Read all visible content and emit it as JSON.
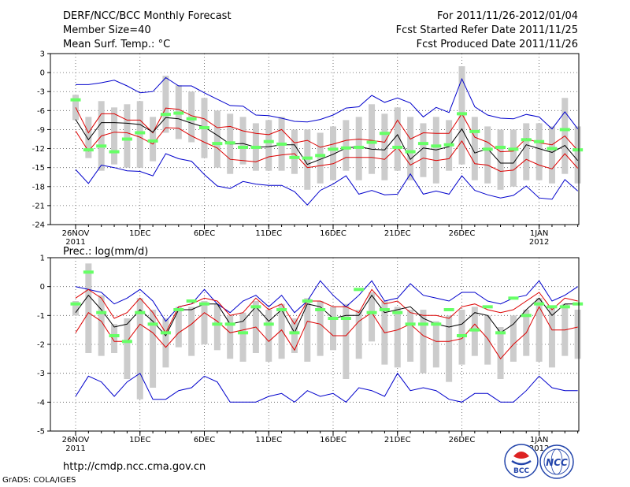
{
  "header": {
    "title": "DERF/NCC/BCC Monthly Forecast",
    "member_size": "Member Size=40",
    "forecast_period": "For 2011/11/26-2012/01/04",
    "fcst_started": "Fcst Started Refer Date 2011/11/25",
    "fcst_produced": "Fcst Produced Date 2011/11/26"
  },
  "footer": {
    "url": "http://cmdp.ncc.cma.gov.cn",
    "grads_credit": "GrADS: COLA/IGES",
    "logo_bcc": "BCC",
    "logo_ncc": "NCC"
  },
  "colors": {
    "upper_envelope": "#0000cc",
    "lower_envelope": "#0000cc",
    "upper_quartile": "#dd0000",
    "lower_quartile": "#dd0000",
    "mean": "#000000",
    "bar": "#cccccc",
    "marker": "#66ff66"
  },
  "chart_data": [
    {
      "type": "line",
      "title": "Mean Surf. Temp.: °C",
      "xlabel": "",
      "ylabel": "",
      "ylim": [
        -24,
        3
      ],
      "yticks": [
        3,
        0,
        -3,
        -6,
        -9,
        -12,
        -15,
        -18,
        -21,
        -24
      ],
      "xtick_labels": [
        {
          "day": 0,
          "label": "26NOV",
          "sub": "2011"
        },
        {
          "day": 5,
          "label": "1DEC",
          "sub": ""
        },
        {
          "day": 10,
          "label": "6DEC",
          "sub": ""
        },
        {
          "day": 15,
          "label": "11DEC",
          "sub": ""
        },
        {
          "day": 20,
          "label": "16DEC",
          "sub": ""
        },
        {
          "day": 25,
          "label": "21DEC",
          "sub": ""
        },
        {
          "day": 30,
          "label": "26DEC",
          "sub": ""
        },
        {
          "day": 36,
          "label": "1JAN",
          "sub": "2012"
        }
      ],
      "x_days": [
        0,
        1,
        2,
        3,
        4,
        5,
        6,
        7,
        8,
        9,
        10,
        11,
        12,
        13,
        14,
        15,
        16,
        17,
        18,
        19,
        20,
        21,
        22,
        23,
        24,
        25,
        26,
        27,
        28,
        29,
        30,
        31,
        32,
        33,
        34,
        35,
        36,
        37,
        38,
        39
      ],
      "series": [
        {
          "name": "max",
          "values": [
            -1.9,
            -1.9,
            -1.6,
            -1.2,
            -2.1,
            -3.2,
            -3.0,
            -0.8,
            -2.1,
            -2.1,
            -3.2,
            -4.2,
            -5.2,
            -5.3,
            -6.7,
            -6.8,
            -7.2,
            -7.7,
            -7.8,
            -7.4,
            -6.7,
            -5.6,
            -5.4,
            -3.6,
            -4.7,
            -4.0,
            -4.8,
            -7.0,
            -5.5,
            -6.3,
            -1.0,
            -5.4,
            -6.7,
            -7.2,
            -7.3,
            -6.6,
            -7.0,
            -8.9,
            -6.2,
            -8.9
          ]
        },
        {
          "name": "upper",
          "values": [
            -5.5,
            -9.5,
            -6.5,
            -6.5,
            -7.5,
            -7.5,
            -9.5,
            -5.6,
            -5.8,
            -6.8,
            -7.3,
            -8.7,
            -8.5,
            -9.2,
            -9.6,
            -9.8,
            -9.0,
            -11.1,
            -10.7,
            -11.8,
            -11.3,
            -10.7,
            -10.5,
            -10.7,
            -11.0,
            -7.5,
            -10.5,
            -9.5,
            -9.6,
            -9.6,
            -6.5,
            -10.2,
            -11.0,
            -12.5,
            -12.4,
            -10.4,
            -11.1,
            -11.4,
            -10.0,
            -12.3
          ]
        },
        {
          "name": "mean",
          "values": [
            -7.4,
            -10.6,
            -7.9,
            -7.9,
            -8.0,
            -8.2,
            -9.4,
            -7.1,
            -7.3,
            -8.0,
            -8.6,
            -9.9,
            -11.3,
            -11.2,
            -11.8,
            -11.7,
            -11.4,
            -11.4,
            -14.5,
            -13.7,
            -12.9,
            -11.9,
            -11.7,
            -12.1,
            -12.2,
            -9.8,
            -13.7,
            -11.9,
            -12.2,
            -11.7,
            -8.9,
            -12.7,
            -12.0,
            -14.3,
            -14.3,
            -11.4,
            -12.0,
            -12.6,
            -11.5,
            -13.9
          ]
        },
        {
          "name": "lower",
          "values": [
            -9.2,
            -12.4,
            -10.0,
            -9.4,
            -9.5,
            -10.2,
            -11.3,
            -8.7,
            -8.8,
            -10.0,
            -11.0,
            -11.9,
            -13.7,
            -13.9,
            -14.1,
            -13.3,
            -13.0,
            -12.8,
            -15.0,
            -14.7,
            -14.4,
            -13.4,
            -13.4,
            -13.4,
            -13.7,
            -11.8,
            -14.6,
            -13.5,
            -13.9,
            -13.6,
            -10.8,
            -14.4,
            -14.6,
            -15.6,
            -15.4,
            -13.7,
            -14.6,
            -15.2,
            -12.8,
            -15.1
          ]
        },
        {
          "name": "min",
          "values": [
            -15.3,
            -17.5,
            -14.6,
            -15.0,
            -15.5,
            -15.6,
            -16.3,
            -12.8,
            -13.6,
            -14.0,
            -16.1,
            -17.9,
            -18.3,
            -17.2,
            -17.6,
            -17.8,
            -17.8,
            -18.8,
            -20.9,
            -18.6,
            -17.6,
            -16.3,
            -19.2,
            -18.6,
            -19.3,
            -19.2,
            -16.0,
            -19.2,
            -18.7,
            -19.2,
            -16.3,
            -18.6,
            -19.3,
            -19.8,
            -19.4,
            -17.9,
            -19.8,
            -20.0,
            -16.9,
            -18.7
          ]
        },
        {
          "name": "bar_top",
          "values": [
            -3.5,
            -7.0,
            -4.5,
            -5.5,
            -5.0,
            -4.5,
            -7.0,
            -0.5,
            -2.0,
            -3.0,
            -4.0,
            -6.0,
            -6.5,
            -7.0,
            -8.0,
            -7.5,
            -7.0,
            -9.0,
            -9.0,
            -9.5,
            -8.5,
            -7.5,
            -7.0,
            -5.0,
            -6.5,
            -5.5,
            -7.0,
            -8.0,
            -7.0,
            -7.5,
            1.0,
            -7.0,
            -8.5,
            -9.0,
            -9.0,
            -8.0,
            -8.0,
            -8.5,
            -4.0,
            -8.5
          ]
        },
        {
          "name": "bar_bottom",
          "values": [
            -7.5,
            -13.5,
            -15.5,
            -14.5,
            -15.0,
            -15.0,
            -14.0,
            -9.5,
            -10.5,
            -11.0,
            -13.5,
            -15.0,
            -16.0,
            -14.5,
            -15.5,
            -15.5,
            -15.5,
            -16.0,
            -18.5,
            -17.5,
            -17.0,
            -15.5,
            -17.0,
            -16.0,
            -17.0,
            -15.5,
            -17.0,
            -16.5,
            -17.5,
            -15.5,
            -14.5,
            -17.0,
            -17.5,
            -18.5,
            -18.0,
            -17.0,
            -17.0,
            -17.5,
            -16.0,
            -17.5
          ]
        },
        {
          "name": "marker",
          "values": [
            -4.3,
            -12.2,
            -11.6,
            -12.5,
            -10.5,
            -9.5,
            -10.8,
            -6.6,
            -6.4,
            -7.3,
            -8.7,
            -11.2,
            -11.1,
            -11.8,
            -11.8,
            -10.9,
            -11.3,
            -13.4,
            -13.5,
            -13.1,
            -12.1,
            -11.9,
            -11.8,
            -11.0,
            -9.6,
            -11.8,
            -12.5,
            -11.2,
            -11.6,
            -11.4,
            -6.5,
            -9.3,
            -12.1,
            -11.8,
            -12.1,
            -10.6,
            -10.9,
            -12.0,
            -9.0,
            -12.2
          ]
        }
      ]
    },
    {
      "type": "line",
      "title": "Prec.: log(mm/d)",
      "xlabel": "",
      "ylabel": "",
      "ylim": [
        -5,
        1
      ],
      "yticks": [
        1,
        0,
        -1,
        -2,
        -3,
        -4,
        -5
      ],
      "xtick_labels": [
        {
          "day": 0,
          "label": "26NOV",
          "sub": "2011"
        },
        {
          "day": 5,
          "label": "1DEC",
          "sub": ""
        },
        {
          "day": 10,
          "label": "6DEC",
          "sub": ""
        },
        {
          "day": 15,
          "label": "11DEC",
          "sub": ""
        },
        {
          "day": 20,
          "label": "16DEC",
          "sub": ""
        },
        {
          "day": 25,
          "label": "21DEC",
          "sub": ""
        },
        {
          "day": 30,
          "label": "26DEC",
          "sub": ""
        },
        {
          "day": 36,
          "label": "1JAN",
          "sub": "2012"
        }
      ],
      "x_days": [
        0,
        1,
        2,
        3,
        4,
        5,
        6,
        7,
        8,
        9,
        10,
        11,
        12,
        13,
        14,
        15,
        16,
        17,
        18,
        19,
        20,
        21,
        22,
        23,
        24,
        25,
        26,
        27,
        28,
        29,
        30,
        31,
        32,
        33,
        34,
        35,
        36,
        37,
        38,
        39
      ],
      "series": [
        {
          "name": "max",
          "values": [
            0.0,
            -0.1,
            -0.2,
            -0.6,
            -0.4,
            -0.1,
            -0.5,
            -1.2,
            -0.7,
            -0.6,
            -0.1,
            -0.6,
            -0.9,
            -0.5,
            -0.3,
            -0.7,
            -0.3,
            -0.9,
            -0.5,
            0.2,
            -0.3,
            -0.7,
            -0.3,
            0.2,
            -0.5,
            -0.4,
            0.1,
            -0.3,
            -0.4,
            -0.5,
            -0.2,
            -0.2,
            -0.5,
            -0.6,
            -0.4,
            -0.3,
            0.2,
            -0.5,
            -0.3,
            0.0
          ]
        },
        {
          "name": "upper",
          "values": [
            -0.4,
            -0.1,
            -0.4,
            -1.1,
            -0.9,
            -0.4,
            -0.9,
            -1.6,
            -0.7,
            -0.6,
            -0.4,
            -0.5,
            -1.0,
            -0.9,
            -0.4,
            -0.8,
            -0.6,
            -1.3,
            -0.5,
            -0.5,
            -0.7,
            -0.7,
            -0.9,
            -0.1,
            -0.6,
            -0.5,
            -0.9,
            -1.0,
            -1.0,
            -1.1,
            -0.7,
            -0.6,
            -0.8,
            -0.9,
            -0.8,
            -0.5,
            -0.2,
            -0.8,
            -0.4,
            -0.5
          ]
        },
        {
          "name": "mean",
          "values": [
            -0.9,
            -0.3,
            -0.8,
            -1.4,
            -1.3,
            -0.8,
            -1.2,
            -1.7,
            -0.8,
            -0.8,
            -0.6,
            -0.6,
            -1.3,
            -1.2,
            -0.7,
            -1.2,
            -0.8,
            -1.6,
            -0.6,
            -0.7,
            -1.1,
            -1.0,
            -1.0,
            -0.3,
            -0.9,
            -0.8,
            -0.7,
            -1.1,
            -1.3,
            -1.4,
            -1.3,
            -0.9,
            -1.0,
            -1.6,
            -1.3,
            -0.8,
            -0.4,
            -1.0,
            -0.6,
            -0.6
          ]
        },
        {
          "name": "lower",
          "values": [
            -1.6,
            -0.9,
            -1.2,
            -1.9,
            -1.9,
            -1.3,
            -1.6,
            -2.1,
            -1.6,
            -1.3,
            -0.9,
            -1.2,
            -1.6,
            -1.5,
            -1.4,
            -1.9,
            -1.5,
            -2.2,
            -1.2,
            -1.3,
            -1.7,
            -1.7,
            -1.2,
            -0.9,
            -1.6,
            -1.5,
            -1.3,
            -1.7,
            -1.9,
            -1.9,
            -1.8,
            -1.3,
            -1.8,
            -2.5,
            -2.0,
            -1.6,
            -0.7,
            -1.5,
            -1.5,
            -1.4
          ]
        },
        {
          "name": "min",
          "values": [
            -3.8,
            -3.1,
            -3.3,
            -3.8,
            -3.3,
            -3.0,
            -3.9,
            -3.9,
            -3.6,
            -3.5,
            -3.1,
            -3.3,
            -4.0,
            -4.0,
            -4.0,
            -3.8,
            -3.7,
            -4.0,
            -3.6,
            -3.8,
            -3.7,
            -4.0,
            -3.5,
            -3.6,
            -3.8,
            -3.0,
            -3.6,
            -3.5,
            -3.6,
            -3.9,
            -4.0,
            -3.7,
            -3.7,
            -4.0,
            -4.0,
            -3.6,
            -3.1,
            -3.5,
            -3.6,
            -3.6
          ]
        },
        {
          "name": "bar_top",
          "values": [
            -0.5,
            0.8,
            -0.3,
            -1.3,
            -1.1,
            -0.4,
            -0.8,
            -1.1,
            -0.7,
            -0.7,
            -0.5,
            -0.6,
            -1.0,
            -0.9,
            -0.5,
            -0.8,
            -0.6,
            -1.1,
            -0.4,
            -0.5,
            -0.7,
            -0.6,
            -0.8,
            -0.2,
            -0.5,
            -0.7,
            -0.8,
            -0.8,
            -1.2,
            -1.0,
            -0.8,
            -0.7,
            -1.0,
            -1.4,
            -1.0,
            -0.8,
            -0.4,
            -0.7,
            -0.6,
            -0.8
          ]
        },
        {
          "name": "bar_bottom",
          "values": [
            -1.0,
            -2.3,
            -2.4,
            -2.3,
            -3.2,
            -3.9,
            -3.5,
            -2.8,
            -2.1,
            -2.4,
            -2.0,
            -2.2,
            -2.5,
            -2.6,
            -2.3,
            -2.6,
            -2.5,
            -2.3,
            -2.6,
            -2.4,
            -2.2,
            -3.2,
            -2.5,
            -1.9,
            -2.7,
            -2.8,
            -2.6,
            -3.0,
            -2.8,
            -3.3,
            -2.7,
            -2.4,
            -2.7,
            -3.2,
            -2.6,
            -2.4,
            -2.6,
            -2.8,
            -2.4,
            -2.5
          ]
        },
        {
          "name": "marker",
          "values": [
            -0.6,
            0.5,
            -0.9,
            -1.7,
            -1.9,
            -0.9,
            -1.3,
            -1.6,
            -0.8,
            -0.5,
            -0.6,
            -1.3,
            -1.3,
            -1.6,
            -0.7,
            -1.3,
            -0.8,
            -1.6,
            -0.5,
            -0.8,
            -1.1,
            -1.1,
            -0.1,
            -0.9,
            -0.8,
            -0.9,
            -1.3,
            -1.3,
            -1.3,
            -0.8,
            -1.7,
            -1.5,
            -0.7,
            -1.6,
            -0.4,
            -1.0,
            -0.6,
            -0.7,
            -0.7,
            -0.6
          ]
        }
      ]
    }
  ]
}
